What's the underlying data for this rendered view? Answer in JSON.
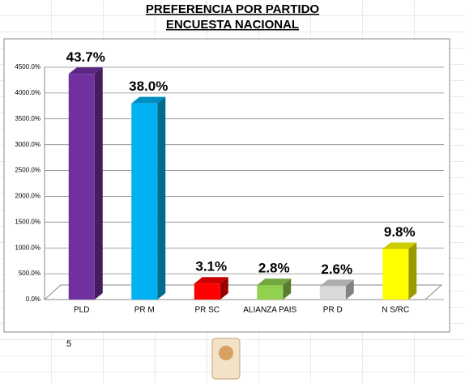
{
  "chart_data": {
    "type": "bar3d",
    "title": "PREFERENCIA POR PARTIDO",
    "subtitle": "ENCUESTA  NACIONAL",
    "categories": [
      "PLD",
      "PR M",
      "PR SC",
      "ALIANZA PAIS",
      "PR D",
      "N S/RC"
    ],
    "values": [
      43.7,
      38.0,
      3.1,
      2.8,
      2.6,
      9.8
    ],
    "value_labels": [
      "43.7%",
      "38.0%",
      "3.1%",
      "2.8%",
      "2.6%",
      "9.8%"
    ],
    "colors": [
      "#7030a0",
      "#00b0f0",
      "#ff0000",
      "#92d050",
      "#d9d9d9",
      "#ffff00"
    ],
    "ylim": [
      0,
      45
    ],
    "yticks": [
      {
        "value": 0,
        "label": "0.0%"
      },
      {
        "value": 5,
        "label": "500.0%"
      },
      {
        "value": 10,
        "label": "1000.0%"
      },
      {
        "value": 15,
        "label": "1500.0%"
      },
      {
        "value": 20,
        "label": "2000.0%"
      },
      {
        "value": 25,
        "label": "2500.0%"
      },
      {
        "value": 30,
        "label": "3000.0%"
      },
      {
        "value": 35,
        "label": "3500.0%"
      },
      {
        "value": 40,
        "label": "4000.0%"
      },
      {
        "value": 45,
        "label": "4500.0%"
      }
    ],
    "grid": true
  },
  "sheet": {
    "cell": "5"
  }
}
